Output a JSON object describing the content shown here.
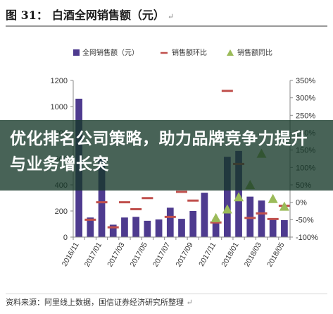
{
  "figure": {
    "title_no": "图 31：",
    "title_text": "白酒全网销售额（元）",
    "edit_mark": "↵"
  },
  "footer": {
    "source": "资料来源：阿里线上数据，国信证券经济研究所整理",
    "edit_mark": "↵"
  },
  "overlay": {
    "text": "优化排名公司策略，助力品牌竞争力提升与业务增长突"
  },
  "colors": {
    "bar": "#4e3b8f",
    "mom_line": "#c0504d",
    "yoy_marker": "#9bbb59",
    "axis": "#888888"
  },
  "chart_data": {
    "type": "bar",
    "title": "",
    "legend": {
      "position": "top",
      "items": [
        "全网销售额（元）",
        "销售额环比",
        "销售额同比"
      ]
    },
    "categories": [
      "2016/11",
      "2016/12",
      "2017/01",
      "2017/02",
      "2017/03",
      "2017/04",
      "2017/05",
      "2017/06",
      "2017/07",
      "2017/08",
      "2017/09",
      "2017/10",
      "2017/11",
      "2017/12",
      "2018/01",
      "2018/02",
      "2018/03",
      "2018/04",
      "2018/05"
    ],
    "x_tick_labels": [
      "2016/11",
      "2017/01",
      "2017/03",
      "2017/05",
      "2017/07",
      "2017/09",
      "2017/11",
      "2018/01",
      "2018/03",
      "2018/05"
    ],
    "series": [
      {
        "name": "全网销售额（元）",
        "kind": "bar",
        "axis": "left",
        "values": [
          1060,
          150,
          600,
          95,
          150,
          155,
          125,
          135,
          225,
          140,
          200,
          340,
          140,
          615,
          660,
          310,
          280,
          140,
          130
        ]
      },
      {
        "name": "销售额环比",
        "kind": "dash-marker",
        "axis": "right",
        "values": [
          null,
          -50,
          0,
          -72,
          0,
          -20,
          12,
          null,
          -42,
          30,
          5,
          null,
          -58,
          320,
          110,
          -45,
          -32,
          -48,
          -10
        ]
      },
      {
        "name": "销售额同比",
        "kind": "triangle-marker",
        "axis": "right",
        "values": [
          null,
          null,
          null,
          null,
          null,
          null,
          null,
          null,
          null,
          null,
          null,
          null,
          -45,
          -20,
          15,
          50,
          140,
          10,
          -12
        ]
      }
    ],
    "y_left": {
      "min": 0,
      "max": 1200,
      "ticks": [
        "0",
        "200",
        "400",
        "600",
        "800",
        "1000",
        "1200"
      ]
    },
    "y_right": {
      "min": -100,
      "max": 350,
      "ticks": [
        "-100%",
        "-50%",
        "0%",
        "50%",
        "100%",
        "150%",
        "200%",
        "250%",
        "300%",
        "350%"
      ]
    },
    "grid": false
  }
}
